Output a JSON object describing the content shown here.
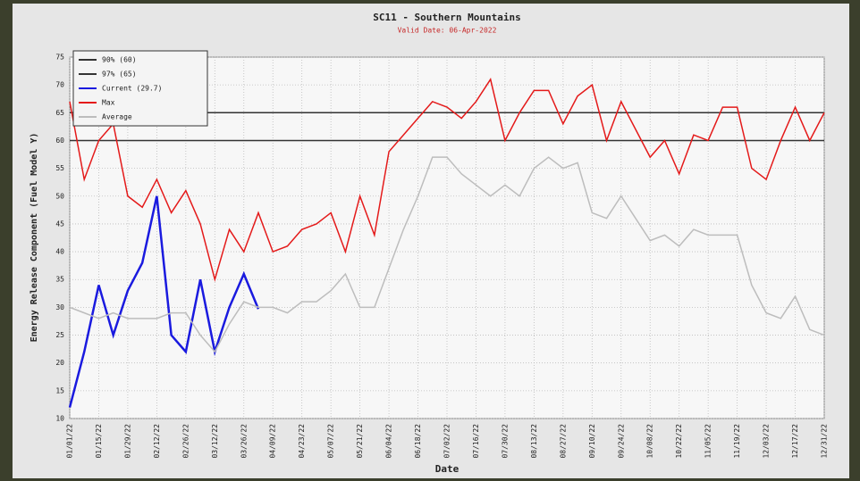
{
  "chart_data": {
    "type": "line",
    "title": "SC11 - Southern Mountains",
    "subtitle": "Valid Date: 06-Apr-2022",
    "x_label": "Date",
    "y_label": "Energy Release Component (Fuel Model Y)",
    "x": [
      0,
      7,
      14,
      21,
      28,
      35,
      42,
      49,
      56,
      63,
      70,
      77,
      84,
      91,
      98,
      105,
      112,
      119,
      126,
      133,
      140,
      147,
      154,
      161,
      168,
      175,
      182,
      189,
      196,
      203,
      210,
      217,
      224,
      231,
      238,
      245,
      252,
      259,
      266,
      273,
      280,
      287,
      294,
      301,
      308,
      315,
      322,
      329,
      336,
      343,
      350,
      357,
      364
    ],
    "xlim": [
      0,
      364
    ],
    "xticks": [
      {
        "value": 0,
        "label": "01/01/22"
      },
      {
        "value": 14,
        "label": "01/15/22"
      },
      {
        "value": 28,
        "label": "01/29/22"
      },
      {
        "value": 42,
        "label": "02/12/22"
      },
      {
        "value": 56,
        "label": "02/26/22"
      },
      {
        "value": 70,
        "label": "03/12/22"
      },
      {
        "value": 84,
        "label": "03/26/22"
      },
      {
        "value": 98,
        "label": "04/09/22"
      },
      {
        "value": 112,
        "label": "04/23/22"
      },
      {
        "value": 126,
        "label": "05/07/22"
      },
      {
        "value": 140,
        "label": "05/21/22"
      },
      {
        "value": 154,
        "label": "06/04/22"
      },
      {
        "value": 168,
        "label": "06/18/22"
      },
      {
        "value": 182,
        "label": "07/02/22"
      },
      {
        "value": 196,
        "label": "07/16/22"
      },
      {
        "value": 210,
        "label": "07/30/22"
      },
      {
        "value": 224,
        "label": "08/13/22"
      },
      {
        "value": 238,
        "label": "08/27/22"
      },
      {
        "value": 252,
        "label": "09/10/22"
      },
      {
        "value": 266,
        "label": "09/24/22"
      },
      {
        "value": 280,
        "label": "10/08/22"
      },
      {
        "value": 294,
        "label": "10/22/22"
      },
      {
        "value": 308,
        "label": "11/05/22"
      },
      {
        "value": 322,
        "label": "11/19/22"
      },
      {
        "value": 336,
        "label": "12/03/22"
      },
      {
        "value": 350,
        "label": "12/17/22"
      },
      {
        "value": 364,
        "label": "12/31/22"
      }
    ],
    "ylim": [
      10,
      75
    ],
    "yticks": [
      10,
      15,
      20,
      25,
      30,
      35,
      40,
      45,
      50,
      55,
      60,
      65,
      70,
      75
    ],
    "grid": true,
    "legend": "top-left",
    "reference_lines": [
      {
        "name": "90% (60)",
        "value": 60,
        "color": "#333333"
      },
      {
        "name": "97% (65)",
        "value": 65,
        "color": "#333333"
      }
    ],
    "series": [
      {
        "name": "Current (29.7)",
        "color": "#1a1adf",
        "values": [
          12,
          22,
          34,
          25,
          33,
          38,
          50,
          25,
          22,
          35,
          22,
          30,
          36,
          29.7,
          null,
          null,
          null,
          null,
          null,
          null,
          null,
          null,
          null,
          null,
          null,
          null,
          null,
          null,
          null,
          null,
          null,
          null,
          null,
          null,
          null,
          null,
          null,
          null,
          null,
          null,
          null,
          null,
          null,
          null,
          null,
          null,
          null,
          null,
          null,
          null,
          null,
          null,
          null
        ]
      },
      {
        "name": "Max",
        "color": "#e41a1a",
        "values": [
          67,
          53,
          60,
          63,
          50,
          48,
          53,
          47,
          51,
          45,
          35,
          44,
          40,
          47,
          40,
          41,
          44,
          45,
          47,
          40,
          50,
          43,
          58,
          61,
          64,
          67,
          66,
          64,
          67,
          71,
          60,
          65,
          69,
          69,
          63,
          68,
          70,
          60,
          67,
          62,
          57,
          60,
          54,
          61,
          60,
          66,
          66,
          55,
          53,
          60,
          66,
          60,
          65
        ]
      },
      {
        "name": "Average",
        "color": "#bdbdbd",
        "values": [
          30,
          29,
          28,
          29,
          28,
          28,
          28,
          29,
          29,
          25,
          22,
          27,
          31,
          30,
          30,
          29,
          31,
          31,
          33,
          36,
          30,
          30,
          37,
          44,
          50,
          57,
          57,
          54,
          52,
          50,
          52,
          50,
          55,
          57,
          55,
          56,
          47,
          46,
          50,
          46,
          42,
          43,
          41,
          44,
          43,
          43,
          43,
          34,
          29,
          28,
          32,
          26,
          25
        ]
      }
    ]
  }
}
